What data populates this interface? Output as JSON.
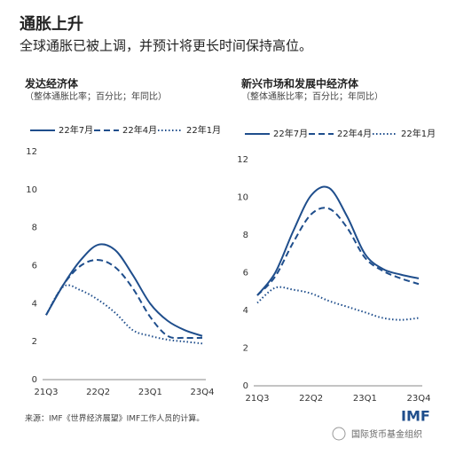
{
  "title": "通胀上升",
  "subtitle": "全球通胀已被上调，并预计将更长时间保持高位。",
  "source": "来源：IMF《世界经济展望》IMF工作人员的计算。",
  "logo": "IMF",
  "watermark": "国际货币基金组织",
  "chart_data": [
    {
      "type": "line",
      "title": "发达经济体",
      "subtitle": "（整体通胀比率；百分比；年同比）",
      "categories": [
        "21Q3",
        null,
        null,
        "22Q2",
        null,
        null,
        "23Q1",
        null,
        null,
        "23Q4"
      ],
      "ylim": [
        0,
        12
      ],
      "yticks": [
        0,
        2,
        4,
        6,
        8,
        10,
        12
      ],
      "grid": false,
      "series": [
        {
          "name": "22年7月",
          "color": "#1f4e8c",
          "style": "solid",
          "values": [
            3.4,
            5.0,
            6.3,
            7.1,
            6.8,
            5.5,
            4.0,
            3.1,
            2.6,
            2.3
          ]
        },
        {
          "name": "22年4月",
          "color": "#1f4e8c",
          "style": "dashed",
          "values": [
            3.4,
            5.0,
            6.0,
            6.3,
            5.9,
            4.8,
            3.3,
            2.3,
            2.2,
            2.2
          ]
        },
        {
          "name": "22年1月",
          "color": "#1f4e8c",
          "style": "dotted",
          "values": [
            3.4,
            4.9,
            4.7,
            4.2,
            3.5,
            2.6,
            2.3,
            2.1,
            2.0,
            1.9
          ]
        }
      ]
    },
    {
      "type": "line",
      "title": "新兴市场和发展中经济体",
      "subtitle": "（整体通胀比率；百分比；年同比）",
      "categories": [
        "21Q3",
        null,
        null,
        "22Q2",
        null,
        null,
        "23Q1",
        null,
        null,
        "23Q4"
      ],
      "ylim": [
        0,
        12
      ],
      "yticks": [
        0,
        2,
        4,
        6,
        8,
        10,
        12
      ],
      "grid": false,
      "series": [
        {
          "name": "22年7月",
          "color": "#1f4e8c",
          "style": "solid",
          "values": [
            4.8,
            6.0,
            8.2,
            10.1,
            10.5,
            9.0,
            7.0,
            6.2,
            5.9,
            5.7
          ]
        },
        {
          "name": "22年4月",
          "color": "#1f4e8c",
          "style": "dashed",
          "values": [
            4.8,
            5.8,
            7.6,
            9.1,
            9.4,
            8.4,
            6.8,
            6.1,
            5.7,
            5.4
          ]
        },
        {
          "name": "22年1月",
          "color": "#1f4e8c",
          "style": "dotted",
          "values": [
            4.4,
            5.2,
            5.1,
            4.9,
            4.5,
            4.2,
            3.9,
            3.6,
            3.5,
            3.6
          ]
        }
      ]
    }
  ]
}
